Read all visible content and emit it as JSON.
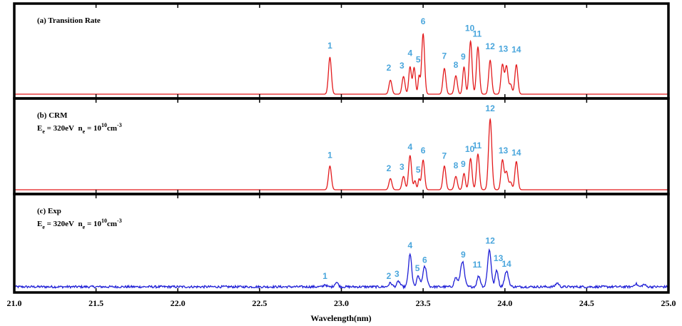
{
  "chart_data": {
    "type": "line",
    "xlabel": "Wavelength(nm)",
    "xlim": [
      21.0,
      25.0
    ],
    "xticks": [
      "21.0",
      "21.5",
      "22.0",
      "22.5",
      "23.0",
      "23.5",
      "24.0",
      "24.5",
      "25.0"
    ],
    "colors": {
      "model": "#e31a1c",
      "exp": "#1f1fd6",
      "labels": "#4aa6dc"
    },
    "panels": [
      {
        "label": "(a) Transition Rate",
        "conditions": null,
        "color": "model",
        "peaks": [
          {
            "x": 22.93,
            "h": 0.5,
            "w": 0.009
          },
          {
            "x": 23.3,
            "h": 0.19,
            "w": 0.009
          },
          {
            "x": 23.38,
            "h": 0.24,
            "w": 0.009
          },
          {
            "x": 23.42,
            "h": 0.37,
            "w": 0.008
          },
          {
            "x": 23.445,
            "h": 0.36,
            "w": 0.008
          },
          {
            "x": 23.475,
            "h": 0.24,
            "w": 0.006
          },
          {
            "x": 23.5,
            "h": 0.82,
            "w": 0.009
          },
          {
            "x": 23.63,
            "h": 0.35,
            "w": 0.009
          },
          {
            "x": 23.7,
            "h": 0.25,
            "w": 0.009
          },
          {
            "x": 23.75,
            "h": 0.37,
            "w": 0.008
          },
          {
            "x": 23.79,
            "h": 0.72,
            "w": 0.009
          },
          {
            "x": 23.835,
            "h": 0.64,
            "w": 0.009
          },
          {
            "x": 23.91,
            "h": 0.46,
            "w": 0.009
          },
          {
            "x": 23.985,
            "h": 0.4,
            "w": 0.009
          },
          {
            "x": 24.01,
            "h": 0.38,
            "w": 0.009
          },
          {
            "x": 24.035,
            "h": 0.13,
            "w": 0.008
          },
          {
            "x": 24.07,
            "h": 0.4,
            "w": 0.009
          }
        ],
        "peak_labels": [
          {
            "text": "1",
            "x": 22.93,
            "h": 0.62
          },
          {
            "text": "2",
            "x": 23.29,
            "h": 0.32
          },
          {
            "text": "3",
            "x": 23.37,
            "h": 0.35
          },
          {
            "text": "4",
            "x": 23.42,
            "h": 0.52
          },
          {
            "text": "5",
            "x": 23.47,
            "h": 0.43
          },
          {
            "text": "6",
            "x": 23.5,
            "h": 0.95
          },
          {
            "text": "7",
            "x": 23.63,
            "h": 0.48
          },
          {
            "text": "8",
            "x": 23.7,
            "h": 0.36
          },
          {
            "text": "9",
            "x": 23.745,
            "h": 0.47
          },
          {
            "text": "10",
            "x": 23.785,
            "h": 0.86
          },
          {
            "text": "11",
            "x": 23.83,
            "h": 0.78
          },
          {
            "text": "12",
            "x": 23.91,
            "h": 0.61
          },
          {
            "text": "13",
            "x": 23.99,
            "h": 0.58
          },
          {
            "text": "14",
            "x": 24.07,
            "h": 0.57
          }
        ]
      },
      {
        "label": "(b) CRM",
        "conditions": {
          "E_sym": "E",
          "E_sub": "e",
          "E_val": " = 320eV",
          "n_sym": "n",
          "n_sub": "e",
          "n_eq": " = 10",
          "n_exp": "10",
          "unit": "cm",
          "unit_exp": "-3"
        },
        "color": "model",
        "peaks": [
          {
            "x": 22.93,
            "h": 0.32,
            "w": 0.009
          },
          {
            "x": 23.3,
            "h": 0.15,
            "w": 0.009
          },
          {
            "x": 23.38,
            "h": 0.18,
            "w": 0.009
          },
          {
            "x": 23.42,
            "h": 0.46,
            "w": 0.009
          },
          {
            "x": 23.45,
            "h": 0.12,
            "w": 0.007
          },
          {
            "x": 23.475,
            "h": 0.14,
            "w": 0.006
          },
          {
            "x": 23.5,
            "h": 0.4,
            "w": 0.009
          },
          {
            "x": 23.63,
            "h": 0.32,
            "w": 0.009
          },
          {
            "x": 23.7,
            "h": 0.18,
            "w": 0.009
          },
          {
            "x": 23.75,
            "h": 0.22,
            "w": 0.008
          },
          {
            "x": 23.79,
            "h": 0.42,
            "w": 0.009
          },
          {
            "x": 23.835,
            "h": 0.48,
            "w": 0.009
          },
          {
            "x": 23.91,
            "h": 0.95,
            "w": 0.01
          },
          {
            "x": 23.985,
            "h": 0.4,
            "w": 0.009
          },
          {
            "x": 24.01,
            "h": 0.24,
            "w": 0.009
          },
          {
            "x": 24.035,
            "h": 0.1,
            "w": 0.008
          },
          {
            "x": 24.07,
            "h": 0.38,
            "w": 0.009
          }
        ],
        "peak_labels": [
          {
            "text": "1",
            "x": 22.93,
            "h": 0.43
          },
          {
            "text": "2",
            "x": 23.29,
            "h": 0.25
          },
          {
            "text": "3",
            "x": 23.37,
            "h": 0.27
          },
          {
            "text": "4",
            "x": 23.42,
            "h": 0.54
          },
          {
            "text": "5",
            "x": 23.47,
            "h": 0.23
          },
          {
            "text": "6",
            "x": 23.5,
            "h": 0.49
          },
          {
            "text": "7",
            "x": 23.63,
            "h": 0.42
          },
          {
            "text": "8",
            "x": 23.7,
            "h": 0.29
          },
          {
            "text": "9",
            "x": 23.745,
            "h": 0.31
          },
          {
            "text": "10",
            "x": 23.785,
            "h": 0.51
          },
          {
            "text": "11",
            "x": 23.83,
            "h": 0.56
          },
          {
            "text": "12",
            "x": 23.91,
            "h": 1.06
          },
          {
            "text": "13",
            "x": 23.99,
            "h": 0.49
          },
          {
            "text": "14",
            "x": 24.07,
            "h": 0.46
          }
        ]
      },
      {
        "label": "(c) Exp",
        "conditions": {
          "E_sym": "E",
          "E_sub": "e",
          "E_val": " = 320eV",
          "n_sym": "n",
          "n_sub": "e",
          "n_eq": " = 10",
          "n_exp": "10",
          "unit": "cm",
          "unit_exp": "-3"
        },
        "color": "exp",
        "noisy": true,
        "peaks": [
          {
            "x": 22.9,
            "h": 0.03,
            "w": 0.008
          },
          {
            "x": 22.97,
            "h": 0.06,
            "w": 0.01
          },
          {
            "x": 23.3,
            "h": 0.05,
            "w": 0.01
          },
          {
            "x": 23.35,
            "h": 0.07,
            "w": 0.01
          },
          {
            "x": 23.42,
            "h": 0.42,
            "w": 0.01
          },
          {
            "x": 23.47,
            "h": 0.14,
            "w": 0.009
          },
          {
            "x": 23.51,
            "h": 0.26,
            "w": 0.012
          },
          {
            "x": 23.7,
            "h": 0.12,
            "w": 0.01
          },
          {
            "x": 23.74,
            "h": 0.33,
            "w": 0.012
          },
          {
            "x": 23.84,
            "h": 0.14,
            "w": 0.01
          },
          {
            "x": 23.905,
            "h": 0.48,
            "w": 0.011
          },
          {
            "x": 23.95,
            "h": 0.22,
            "w": 0.009
          },
          {
            "x": 24.01,
            "h": 0.2,
            "w": 0.012
          },
          {
            "x": 24.32,
            "h": 0.05,
            "w": 0.01
          },
          {
            "x": 24.8,
            "h": 0.04,
            "w": 0.01
          },
          {
            "x": 24.85,
            "h": 0.03,
            "w": 0.01
          }
        ],
        "peak_labels": [
          {
            "text": "1",
            "x": 22.9,
            "h": 0.12
          },
          {
            "text": "2",
            "x": 23.29,
            "h": 0.12
          },
          {
            "text": "3",
            "x": 23.34,
            "h": 0.15
          },
          {
            "text": "4",
            "x": 23.42,
            "h": 0.52
          },
          {
            "text": "5",
            "x": 23.465,
            "h": 0.22
          },
          {
            "text": "6",
            "x": 23.51,
            "h": 0.33
          },
          {
            "text": "9",
            "x": 23.745,
            "h": 0.4
          },
          {
            "text": "11",
            "x": 23.83,
            "h": 0.27
          },
          {
            "text": "12",
            "x": 23.91,
            "h": 0.58
          },
          {
            "text": "13",
            "x": 23.96,
            "h": 0.35
          },
          {
            "text": "14",
            "x": 24.01,
            "h": 0.28
          }
        ]
      }
    ]
  }
}
